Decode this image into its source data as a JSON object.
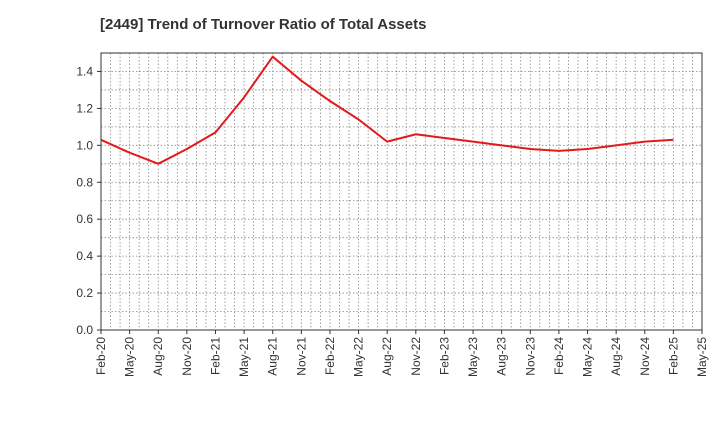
{
  "chart_data": {
    "type": "line",
    "title": "[2449]  Trend of Turnover Ratio of Total Assets",
    "xlabel": "",
    "ylabel": "",
    "ylim": [
      0,
      1.5
    ],
    "y_ticks": [
      "0.0",
      "0.2",
      "0.4",
      "0.6",
      "0.8",
      "1.0",
      "1.2",
      "1.4"
    ],
    "x_ticks": [
      "Feb-20",
      "May-20",
      "Aug-20",
      "Nov-20",
      "Feb-21",
      "May-21",
      "Aug-21",
      "Nov-21",
      "Feb-22",
      "May-22",
      "Aug-22",
      "Nov-22",
      "Feb-23",
      "May-23",
      "Aug-23",
      "Nov-23",
      "Feb-24",
      "May-24",
      "Aug-24",
      "Nov-24",
      "Feb-25",
      "May-25"
    ],
    "grid": true,
    "series": [
      {
        "color": "#e31a1c",
        "x": [
          "Feb-20",
          "May-20",
          "Aug-20",
          "Nov-20",
          "Feb-21",
          "May-21",
          "Aug-21",
          "Nov-21",
          "Feb-22",
          "May-22",
          "Aug-22",
          "Nov-22",
          "Feb-23",
          "May-23",
          "Aug-23",
          "Nov-23",
          "Feb-24",
          "May-24",
          "Aug-24",
          "Nov-24",
          "Feb-25"
        ],
        "values": [
          1.03,
          0.96,
          0.9,
          0.98,
          1.07,
          1.26,
          1.48,
          1.35,
          1.24,
          1.14,
          1.02,
          1.06,
          1.04,
          1.02,
          1.0,
          0.98,
          0.97,
          0.98,
          1.0,
          1.02,
          1.03
        ]
      }
    ]
  }
}
